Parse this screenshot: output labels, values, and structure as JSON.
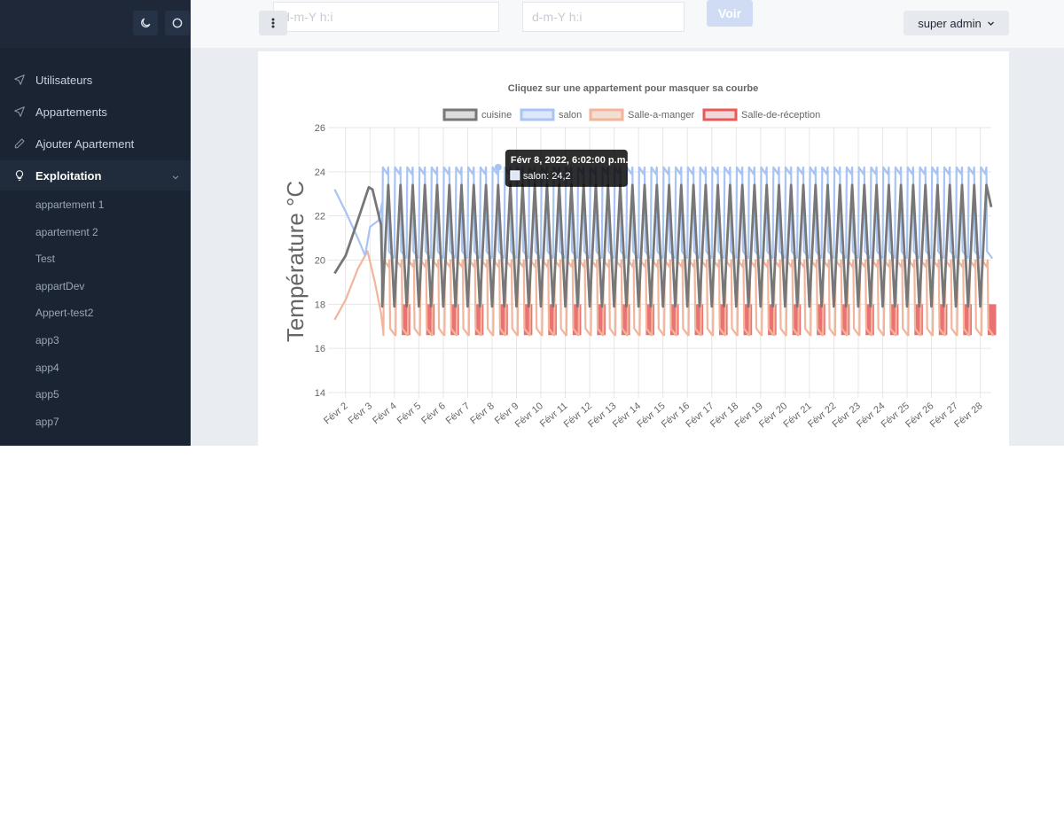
{
  "sidebar": {
    "nav": [
      {
        "label": "Utilisateurs",
        "icon": "send-icon"
      },
      {
        "label": "Appartements",
        "icon": "send-icon"
      },
      {
        "label": "Ajouter Apartement",
        "icon": "pencil-icon"
      },
      {
        "label": "Exploitation",
        "icon": "lightbulb-icon"
      }
    ],
    "sub_items": [
      "appartement 1",
      "apartement 2",
      "Test",
      "appartDev",
      "Appert-test2",
      "app3",
      "app4",
      "app5",
      "app7"
    ],
    "theme_icons": [
      "moon-icon",
      "circle-icon"
    ]
  },
  "header": {
    "date_from_placeholder": "d-m-Y h:i",
    "date_to_placeholder": "d-m-Y h:i",
    "voir_label": "Voir",
    "user_label": "super admin"
  },
  "chart_data": {
    "type": "line",
    "title": "Cliquez sur une appartement pour masquer sa courbe",
    "ylabel": "Température °C",
    "xlabel": "",
    "ylim": [
      14,
      26
    ],
    "y_ticks": [
      14,
      16,
      18,
      20,
      22,
      24,
      26
    ],
    "x_ticks": [
      "Févr 2",
      "Févr 3",
      "Févr 4",
      "Févr 5",
      "Févr 6",
      "Févr 7",
      "Févr 8",
      "Févr 9",
      "Févr 10",
      "Févr 11",
      "Févr 12",
      "Févr 13",
      "Févr 14",
      "Févr 15",
      "Févr 16",
      "Févr 17",
      "Févr 18",
      "Févr 19",
      "Févr 20",
      "Févr 21",
      "Févr 22",
      "Févr 23",
      "Févr 24",
      "Févr 25",
      "Févr 26",
      "Févr 27",
      "Févr 28"
    ],
    "x_range": [
      1.5,
      28.45
    ],
    "grid": true,
    "legend_position": "top",
    "series": [
      {
        "name": "cuisine",
        "color": "#777777",
        "fill": "#dcdcdc",
        "start": [
          [
            1.55,
            19.4
          ],
          [
            2.0,
            20.2
          ],
          [
            2.5,
            21.8
          ],
          [
            2.95,
            23.3
          ],
          [
            3.1,
            23.2
          ],
          [
            3.45,
            21.6
          ],
          [
            3.5,
            19.2
          ]
        ],
        "cycle": {
          "from": 3.5,
          "to": 28.45,
          "per_day": 2,
          "min": 17.9,
          "max": 23.4,
          "wave": "zigzag"
        }
      },
      {
        "name": "salon",
        "color": "#a8c4f4",
        "fill": "#dde7f9",
        "start": [
          [
            1.55,
            23.2
          ],
          [
            2.0,
            22.2
          ],
          [
            2.5,
            21.0
          ],
          [
            2.8,
            20.2
          ],
          [
            3.0,
            21.5
          ],
          [
            3.35,
            21.8
          ],
          [
            3.5,
            22.6
          ]
        ],
        "cycle": {
          "from": 3.5,
          "to": 28.45,
          "per_day": 2,
          "min": 20.1,
          "max": 24.2,
          "wave": "square"
        }
      },
      {
        "name": "Salle-a-manger",
        "color": "#f2b49a",
        "fill": "#f4ddd2",
        "start": [
          [
            1.55,
            17.3
          ],
          [
            2.0,
            18.2
          ],
          [
            2.5,
            19.6
          ],
          [
            2.9,
            20.4
          ],
          [
            3.2,
            19.0
          ],
          [
            3.45,
            17.6
          ],
          [
            3.55,
            16.7
          ]
        ],
        "cycle": {
          "from": 3.55,
          "to": 28.45,
          "per_day": 2,
          "min": 16.6,
          "max": 20.0,
          "wave": "square"
        }
      },
      {
        "name": "Salle-de-réception",
        "color": "#e8595a",
        "fill": "#f2d7d8",
        "blocks": {
          "from": 4.3,
          "to": 28.45,
          "per_day": 1,
          "min": 16.6,
          "max": 18.0,
          "width": 0.35
        }
      }
    ],
    "tooltip": {
      "title": "Févr 8, 2022, 6:02:00 p.m.",
      "series": "salon",
      "value_text": "salon: 24,2",
      "x": 8.25,
      "y": 24.2
    }
  }
}
